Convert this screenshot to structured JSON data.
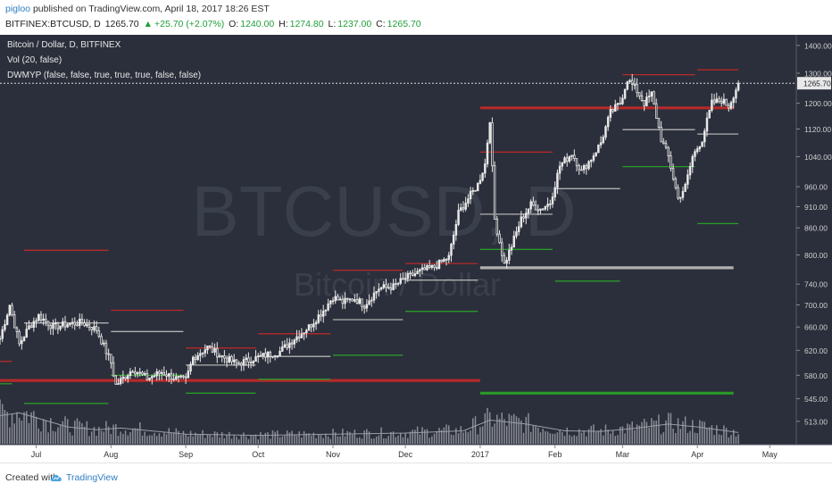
{
  "header": {
    "author": "pigloo",
    "published_text": "published on TradingView.com, April 18, 2017 18:26 EST",
    "symbol": "BITFINEX:BTCUSD, D",
    "last": "1265.70",
    "change_arrow": "▲",
    "change": "+25.70 (+2.07%)",
    "open_label": "O:",
    "open": "1240.00",
    "high_label": "H:",
    "high": "1274.80",
    "low_label": "L:",
    "low": "1237.00",
    "close_label": "C:",
    "close": "1265.70"
  },
  "legend": {
    "title": "Bitcoin / Dollar, D, BITFINEX",
    "vol": "Vol (20, false)",
    "indicator": "DWMYP (false, false, true, true, true, false, false)"
  },
  "watermark": {
    "symbol": "BTCUSD, D",
    "name": "Bitcoin / Dollar"
  },
  "footer": {
    "created_with": "Created with",
    "brand": "TradingView"
  },
  "colors": {
    "background": "#2b2f3b",
    "candle": "#e8e8e8",
    "pivot_red": "#b52a2a",
    "pivot_green": "#2a9a2a",
    "pivot_gray": "#b0b0b0",
    "volume": "#8a8d95",
    "axis_text": "#cfcfcf",
    "price_tag": "#e8e8e8"
  },
  "chart_data": {
    "type": "candlestick",
    "title": "Bitcoin / Dollar, D, BITFINEX",
    "y_axis_ticks": [
      1400,
      1300,
      1200,
      1120,
      1040,
      960,
      910,
      860,
      800,
      740,
      700,
      660,
      620,
      580,
      545,
      513
    ],
    "y_axis_tick_labels": [
      "1400.00",
      "1300.00",
      "1200.00",
      "1120.00",
      "1040.00",
      "960.00",
      "910.00",
      "860.00",
      "800.00",
      "740.00",
      "700.00",
      "660.00",
      "620.00",
      "580.00",
      "545.00",
      "513.00"
    ],
    "ylim": [
      490,
      1420
    ],
    "scale": "log",
    "x_axis_labels": [
      "Jul",
      "Aug",
      "Sep",
      "Oct",
      "Nov",
      "Dec",
      "2017",
      "Feb",
      "Mar",
      "Apr",
      "May"
    ],
    "x_axis_label_dates": [
      "2016-07-01",
      "2016-08-01",
      "2016-09-01",
      "2016-10-01",
      "2016-11-01",
      "2016-12-01",
      "2017-01-01",
      "2017-02-01",
      "2017-03-01",
      "2017-04-01",
      "2017-05-01"
    ],
    "x_range": [
      "2016-06-16",
      "2017-05-12"
    ],
    "last_price": 1265.7,
    "last_price_label": "1265.70",
    "price_path": [
      [
        "2016-06-16",
        640
      ],
      [
        "2016-06-20",
        700
      ],
      [
        "2016-06-24",
        630
      ],
      [
        "2016-06-28",
        660
      ],
      [
        "2016-07-02",
        680
      ],
      [
        "2016-07-08",
        660
      ],
      [
        "2016-07-14",
        665
      ],
      [
        "2016-07-20",
        668
      ],
      [
        "2016-07-26",
        655
      ],
      [
        "2016-08-01",
        600
      ],
      [
        "2016-08-03",
        565
      ],
      [
        "2016-08-10",
        590
      ],
      [
        "2016-08-16",
        575
      ],
      [
        "2016-08-22",
        585
      ],
      [
        "2016-08-28",
        575
      ],
      [
        "2016-09-01",
        572
      ],
      [
        "2016-09-04",
        608
      ],
      [
        "2016-09-10",
        625
      ],
      [
        "2016-09-16",
        610
      ],
      [
        "2016-09-22",
        598
      ],
      [
        "2016-09-28",
        605
      ],
      [
        "2016-10-04",
        612
      ],
      [
        "2016-10-10",
        618
      ],
      [
        "2016-10-16",
        640
      ],
      [
        "2016-10-22",
        660
      ],
      [
        "2016-10-28",
        690
      ],
      [
        "2016-11-01",
        715
      ],
      [
        "2016-11-05",
        705
      ],
      [
        "2016-11-10",
        712
      ],
      [
        "2016-11-14",
        700
      ],
      [
        "2016-11-20",
        732
      ],
      [
        "2016-11-26",
        735
      ],
      [
        "2016-12-01",
        752
      ],
      [
        "2016-12-07",
        765
      ],
      [
        "2016-12-13",
        775
      ],
      [
        "2016-12-19",
        795
      ],
      [
        "2016-12-23",
        895
      ],
      [
        "2016-12-27",
        930
      ],
      [
        "2016-12-31",
        965
      ],
      [
        "2017-01-03",
        1020
      ],
      [
        "2017-01-05",
        1150
      ],
      [
        "2017-01-07",
        880
      ],
      [
        "2017-01-11",
        780
      ],
      [
        "2017-01-14",
        820
      ],
      [
        "2017-01-18",
        880
      ],
      [
        "2017-01-22",
        915
      ],
      [
        "2017-01-26",
        905
      ],
      [
        "2017-01-30",
        920
      ],
      [
        "2017-02-03",
        1015
      ],
      [
        "2017-02-08",
        1050
      ],
      [
        "2017-02-12",
        1000
      ],
      [
        "2017-02-16",
        1035
      ],
      [
        "2017-02-20",
        1080
      ],
      [
        "2017-02-24",
        1170
      ],
      [
        "2017-02-28",
        1200
      ],
      [
        "2017-03-03",
        1280
      ],
      [
        "2017-03-07",
        1240
      ],
      [
        "2017-03-10",
        1200
      ],
      [
        "2017-03-13",
        1230
      ],
      [
        "2017-03-17",
        1090
      ],
      [
        "2017-03-20",
        1040
      ],
      [
        "2017-03-24",
        930
      ],
      [
        "2017-03-27",
        960
      ],
      [
        "2017-03-30",
        1040
      ],
      [
        "2017-04-03",
        1090
      ],
      [
        "2017-04-07",
        1200
      ],
      [
        "2017-04-11",
        1210
      ],
      [
        "2017-04-14",
        1190
      ],
      [
        "2017-04-18",
        1265.7
      ]
    ],
    "pivot_lines": [
      {
        "color": "red",
        "start": "2016-06-16",
        "end": "2017-01-01",
        "price": 572,
        "weight": "thick"
      },
      {
        "color": "red",
        "start": "2017-01-01",
        "end": "2017-04-16",
        "price": 1185,
        "weight": "thick"
      },
      {
        "color": "gray",
        "start": "2017-01-01",
        "end": "2017-04-16",
        "price": 773,
        "weight": "thick"
      },
      {
        "color": "green",
        "start": "2017-01-01",
        "end": "2017-04-16",
        "price": 553,
        "weight": "thick"
      },
      {
        "color": "red",
        "start": "2016-06-16",
        "end": "2016-06-21",
        "price": 602
      },
      {
        "color": "green",
        "start": "2016-06-16",
        "end": "2016-06-21",
        "price": 567
      },
      {
        "color": "red",
        "start": "2016-06-26",
        "end": "2016-07-31",
        "price": 810
      },
      {
        "color": "gray",
        "start": "2016-06-26",
        "end": "2016-07-31",
        "price": 667
      },
      {
        "color": "green",
        "start": "2016-06-26",
        "end": "2016-07-31",
        "price": 538
      },
      {
        "color": "red",
        "start": "2016-08-01",
        "end": "2016-08-31",
        "price": 690
      },
      {
        "color": "gray",
        "start": "2016-08-01",
        "end": "2016-08-31",
        "price": 652
      },
      {
        "color": "green",
        "start": "2016-08-01",
        "end": "2016-08-31",
        "price": 580
      },
      {
        "color": "red",
        "start": "2016-09-01",
        "end": "2016-09-30",
        "price": 624
      },
      {
        "color": "gray",
        "start": "2016-09-01",
        "end": "2016-09-30",
        "price": 596
      },
      {
        "color": "green",
        "start": "2016-09-01",
        "end": "2016-09-30",
        "price": 553
      },
      {
        "color": "red",
        "start": "2016-10-01",
        "end": "2016-10-31",
        "price": 648
      },
      {
        "color": "gray",
        "start": "2016-10-01",
        "end": "2016-10-31",
        "price": 610
      },
      {
        "color": "green",
        "start": "2016-10-01",
        "end": "2016-10-31",
        "price": 574
      },
      {
        "color": "red",
        "start": "2016-11-01",
        "end": "2016-11-30",
        "price": 768
      },
      {
        "color": "gray",
        "start": "2016-11-01",
        "end": "2016-11-30",
        "price": 673
      },
      {
        "color": "green",
        "start": "2016-11-01",
        "end": "2016-11-30",
        "price": 612
      },
      {
        "color": "red",
        "start": "2016-12-01",
        "end": "2016-12-31",
        "price": 782
      },
      {
        "color": "gray",
        "start": "2016-12-01",
        "end": "2016-12-31",
        "price": 748
      },
      {
        "color": "green",
        "start": "2016-12-01",
        "end": "2016-12-31",
        "price": 688
      },
      {
        "color": "red",
        "start": "2017-01-01",
        "end": "2017-01-31",
        "price": 1053
      },
      {
        "color": "gray",
        "start": "2017-01-01",
        "end": "2017-01-31",
        "price": 892
      },
      {
        "color": "green",
        "start": "2017-01-01",
        "end": "2017-01-31",
        "price": 812
      },
      {
        "color": "red",
        "start": "2017-02-01",
        "end": "2017-02-28",
        "price": 1185
      },
      {
        "color": "gray",
        "start": "2017-02-01",
        "end": "2017-02-28",
        "price": 955
      },
      {
        "color": "green",
        "start": "2017-02-01",
        "end": "2017-02-28",
        "price": 746
      },
      {
        "color": "red",
        "start": "2017-03-01",
        "end": "2017-03-31",
        "price": 1295
      },
      {
        "color": "gray",
        "start": "2017-03-01",
        "end": "2017-03-31",
        "price": 1118
      },
      {
        "color": "green",
        "start": "2017-03-01",
        "end": "2017-03-31",
        "price": 1013
      },
      {
        "color": "red",
        "start": "2017-04-01",
        "end": "2017-04-18",
        "price": 1312
      },
      {
        "color": "gray",
        "start": "2017-04-01",
        "end": "2017-04-18",
        "price": 1105
      },
      {
        "color": "green",
        "start": "2017-04-01",
        "end": "2017-04-18",
        "price": 870
      }
    ],
    "volume_ma": [
      [
        "2016-06-16",
        0.5
      ],
      [
        "2016-06-24",
        0.55
      ],
      [
        "2016-07-02",
        0.45
      ],
      [
        "2016-07-14",
        0.3
      ],
      [
        "2016-07-26",
        0.25
      ],
      [
        "2016-08-05",
        0.28
      ],
      [
        "2016-08-20",
        0.22
      ],
      [
        "2016-09-01",
        0.17
      ],
      [
        "2016-10-01",
        0.15
      ],
      [
        "2016-11-01",
        0.17
      ],
      [
        "2016-12-01",
        0.19
      ],
      [
        "2016-12-25",
        0.23
      ],
      [
        "2017-01-05",
        0.42
      ],
      [
        "2017-01-20",
        0.35
      ],
      [
        "2017-02-05",
        0.23
      ],
      [
        "2017-02-20",
        0.22
      ],
      [
        "2017-03-05",
        0.27
      ],
      [
        "2017-03-20",
        0.35
      ],
      [
        "2017-04-01",
        0.3
      ],
      [
        "2017-04-18",
        0.2
      ]
    ],
    "xlabel": "",
    "ylabel": "",
    "grid": false
  }
}
